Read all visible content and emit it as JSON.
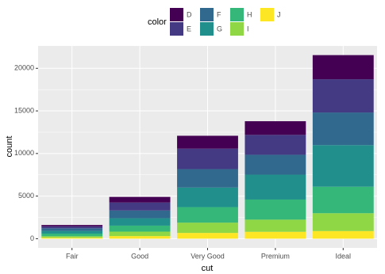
{
  "chart_data": {
    "type": "stacked-bar",
    "x_label": "cut",
    "y_label": "count",
    "legend_title": "color",
    "categories": [
      "Fair",
      "Good",
      "Very Good",
      "Premium",
      "Ideal"
    ],
    "series": [
      {
        "name": "D",
        "color": "#440154",
        "values": [
          163,
          662,
          1513,
          1603,
          2834
        ]
      },
      {
        "name": "E",
        "color": "#443A83",
        "values": [
          224,
          933,
          2400,
          2337,
          3903
        ]
      },
      {
        "name": "F",
        "color": "#31688E",
        "values": [
          312,
          909,
          2164,
          2331,
          3826
        ]
      },
      {
        "name": "G",
        "color": "#21908C",
        "values": [
          314,
          871,
          2299,
          2924,
          4884
        ]
      },
      {
        "name": "H",
        "color": "#35B779",
        "values": [
          303,
          702,
          1824,
          2360,
          3115
        ]
      },
      {
        "name": "I",
        "color": "#8FD744",
        "values": [
          175,
          522,
          1204,
          1428,
          2093
        ]
      },
      {
        "name": "J",
        "color": "#FDE725",
        "values": [
          119,
          307,
          678,
          808,
          896
        ]
      }
    ],
    "ylim": [
      -1078,
      22629
    ],
    "yticks": [
      0,
      5000,
      10000,
      15000,
      20000
    ],
    "grid": true,
    "legend_position": "top"
  }
}
